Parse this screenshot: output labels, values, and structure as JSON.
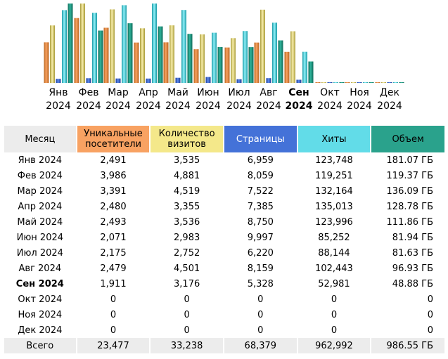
{
  "colors": {
    "unique": "#f8a262",
    "visits": "#f4e88a",
    "pages": "#4472d8",
    "hits": "#62dce8",
    "bandwidth": "#2aa28c"
  },
  "chart_data": {
    "type": "bar",
    "title": "",
    "categories": [
      {
        "month": "Янв",
        "year": "2024"
      },
      {
        "month": "Фев",
        "year": "2024"
      },
      {
        "month": "Мар",
        "year": "2024"
      },
      {
        "month": "Апр",
        "year": "2024"
      },
      {
        "month": "Май",
        "year": "2024"
      },
      {
        "month": "Июн",
        "year": "2024"
      },
      {
        "month": "Июл",
        "year": "2024"
      },
      {
        "month": "Авг",
        "year": "2024"
      },
      {
        "month": "Сен",
        "year": "2024"
      },
      {
        "month": "Окт",
        "year": "2024"
      },
      {
        "month": "Ноя",
        "year": "2024"
      },
      {
        "month": "Дек",
        "year": "2024"
      }
    ],
    "current_index": 8,
    "series": [
      {
        "name": "Уникальные посетители",
        "key": "unique",
        "values": [
          2491,
          3986,
          3391,
          2480,
          2493,
          2071,
          2175,
          2479,
          1911,
          0,
          0,
          0
        ]
      },
      {
        "name": "Количество визитов",
        "key": "visits",
        "values": [
          3535,
          4881,
          4519,
          3355,
          3536,
          2983,
          2752,
          4501,
          3176,
          0,
          0,
          0
        ]
      },
      {
        "name": "Страницы",
        "key": "pages",
        "values": [
          6959,
          8059,
          7522,
          7385,
          8750,
          9997,
          6220,
          8159,
          5328,
          0,
          0,
          0
        ]
      },
      {
        "name": "Хиты",
        "key": "hits",
        "values": [
          123748,
          119251,
          132164,
          135013,
          123996,
          85252,
          88144,
          102443,
          52981,
          0,
          0,
          0
        ]
      },
      {
        "name": "Объем",
        "key": "bandwidth",
        "values": [
          181.07,
          119.37,
          136.09,
          128.78,
          111.86,
          81.94,
          81.63,
          96.93,
          48.88,
          0,
          0,
          0
        ]
      }
    ]
  },
  "table": {
    "headers": {
      "month": "Месяц",
      "unique": "Уникальные посетители",
      "visits": "Количество визитов",
      "pages": "Страницы",
      "hits": "Хиты",
      "bandwidth": "Объем"
    },
    "rows": [
      {
        "month": "Янв 2024",
        "unique": "2,491",
        "visits": "3,535",
        "pages": "6,959",
        "hits": "123,748",
        "bandwidth": "181.07 ГБ"
      },
      {
        "month": "Фев 2024",
        "unique": "3,986",
        "visits": "4,881",
        "pages": "8,059",
        "hits": "119,251",
        "bandwidth": "119.37 ГБ"
      },
      {
        "month": "Мар 2024",
        "unique": "3,391",
        "visits": "4,519",
        "pages": "7,522",
        "hits": "132,164",
        "bandwidth": "136.09 ГБ"
      },
      {
        "month": "Апр 2024",
        "unique": "2,480",
        "visits": "3,355",
        "pages": "7,385",
        "hits": "135,013",
        "bandwidth": "128.78 ГБ"
      },
      {
        "month": "Май 2024",
        "unique": "2,493",
        "visits": "3,536",
        "pages": "8,750",
        "hits": "123,996",
        "bandwidth": "111.86 ГБ"
      },
      {
        "month": "Июн 2024",
        "unique": "2,071",
        "visits": "2,983",
        "pages": "9,997",
        "hits": "85,252",
        "bandwidth": "81.94 ГБ"
      },
      {
        "month": "Июл 2024",
        "unique": "2,175",
        "visits": "2,752",
        "pages": "6,220",
        "hits": "88,144",
        "bandwidth": "81.63 ГБ"
      },
      {
        "month": "Авг 2024",
        "unique": "2,479",
        "visits": "4,501",
        "pages": "8,159",
        "hits": "102,443",
        "bandwidth": "96.93 ГБ"
      },
      {
        "month": "Сен 2024",
        "unique": "1,911",
        "visits": "3,176",
        "pages": "5,328",
        "hits": "52,981",
        "bandwidth": "48.88 ГБ"
      },
      {
        "month": "Окт 2024",
        "unique": "0",
        "visits": "0",
        "pages": "0",
        "hits": "0",
        "bandwidth": "0"
      },
      {
        "month": "Ноя 2024",
        "unique": "0",
        "visits": "0",
        "pages": "0",
        "hits": "0",
        "bandwidth": "0"
      },
      {
        "month": "Дек 2024",
        "unique": "0",
        "visits": "0",
        "pages": "0",
        "hits": "0",
        "bandwidth": "0"
      }
    ],
    "total": {
      "label": "Всего",
      "unique": "23,477",
      "visits": "33,238",
      "pages": "68,379",
      "hits": "962,992",
      "bandwidth": "986.55 ГБ"
    }
  }
}
